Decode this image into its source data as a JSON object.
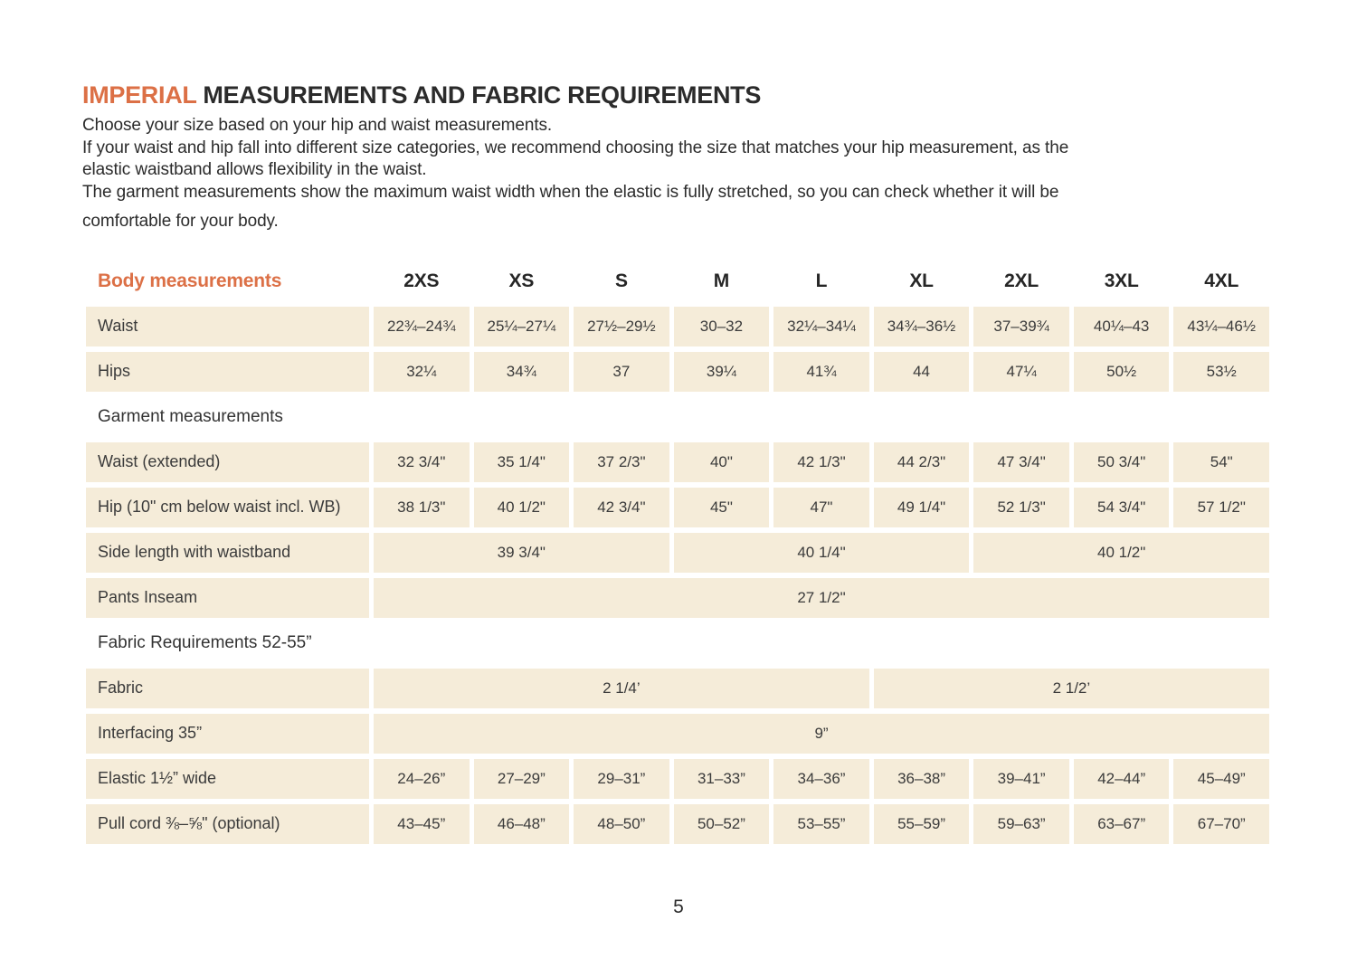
{
  "colors": {
    "accent": "#dc7046",
    "cell_bg": "#f5ecd9",
    "text": "#2d2d2d"
  },
  "header": {
    "title_accent": "IMPERIAL",
    "title_rest": "MEASUREMENTS AND FABRIC REQUIREMENTS"
  },
  "intro": {
    "lines": [
      "Choose your size based on your hip and waist measurements.",
      "If your waist and hip fall into different size categories, we recommend choosing the size that matches your hip measurement, as the",
      "elastic waistband allows flexibility in the waist.",
      "The garment measurements show the maximum waist width when the elastic is fully stretched, so you can check whether it will be",
      "comfortable for your body."
    ]
  },
  "table": {
    "header_label": "Body measurements",
    "columns": [
      "2XS",
      "XS",
      "S",
      "M",
      "L",
      "XL",
      "2XL",
      "3XL",
      "4XL"
    ],
    "rows": [
      {
        "type": "data",
        "label": "Waist",
        "cells": [
          {
            "text": "22¾–24¾",
            "span": 1
          },
          {
            "text": "25¼–27¼",
            "span": 1
          },
          {
            "text": "27½–29½",
            "span": 1
          },
          {
            "text": "30–32",
            "span": 1
          },
          {
            "text": "32¼–34¼",
            "span": 1
          },
          {
            "text": "34¾–36½",
            "span": 1
          },
          {
            "text": "37–39¾",
            "span": 1
          },
          {
            "text": "40¼–43",
            "span": 1
          },
          {
            "text": "43¼–46½",
            "span": 1
          }
        ]
      },
      {
        "type": "data",
        "label": "Hips",
        "cells": [
          {
            "text": "32¼",
            "span": 1
          },
          {
            "text": "34¾",
            "span": 1
          },
          {
            "text": "37",
            "span": 1
          },
          {
            "text": "39¼",
            "span": 1
          },
          {
            "text": "41¾",
            "span": 1
          },
          {
            "text": "44",
            "span": 1
          },
          {
            "text": "47¼",
            "span": 1
          },
          {
            "text": "50½",
            "span": 1
          },
          {
            "text": "53½",
            "span": 1
          }
        ]
      },
      {
        "type": "section",
        "label": "Garment measurements"
      },
      {
        "type": "data",
        "label": "Waist (extended)",
        "cells": [
          {
            "text": "32 3/4\"",
            "span": 1
          },
          {
            "text": "35 1/4\"",
            "span": 1
          },
          {
            "text": "37 2/3\"",
            "span": 1
          },
          {
            "text": "40\"",
            "span": 1
          },
          {
            "text": "42 1/3\"",
            "span": 1
          },
          {
            "text": "44 2/3\"",
            "span": 1
          },
          {
            "text": "47 3/4\"",
            "span": 1
          },
          {
            "text": "50 3/4\"",
            "span": 1
          },
          {
            "text": "54\"",
            "span": 1
          }
        ]
      },
      {
        "type": "data",
        "label": "Hip (10\" cm below waist incl. WB)",
        "cells": [
          {
            "text": "38 1/3\"",
            "span": 1
          },
          {
            "text": "40 1/2\"",
            "span": 1
          },
          {
            "text": "42 3/4\"",
            "span": 1
          },
          {
            "text": "45\"",
            "span": 1
          },
          {
            "text": "47\"",
            "span": 1
          },
          {
            "text": "49 1/4\"",
            "span": 1
          },
          {
            "text": "52 1/3\"",
            "span": 1
          },
          {
            "text": "54 3/4\"",
            "span": 1
          },
          {
            "text": "57 1/2\"",
            "span": 1
          }
        ]
      },
      {
        "type": "data",
        "label": "Side length with waistband",
        "cells": [
          {
            "text": "39 3/4\"",
            "span": 3
          },
          {
            "text": "40 1/4\"",
            "span": 3
          },
          {
            "text": "40 1/2\"",
            "span": 3
          }
        ]
      },
      {
        "type": "data",
        "label": "Pants Inseam",
        "cells": [
          {
            "text": "27 1/2\"",
            "span": 9
          }
        ]
      },
      {
        "type": "section",
        "label": "Fabric Requirements 52-55”"
      },
      {
        "type": "data",
        "label": "Fabric",
        "cells": [
          {
            "text": "2 1/4’",
            "span": 5
          },
          {
            "text": "2 1/2’",
            "span": 4
          }
        ]
      },
      {
        "type": "data",
        "label": "Interfacing 35”",
        "cells": [
          {
            "text": "9”",
            "span": 9
          }
        ]
      },
      {
        "type": "data",
        "label": "Elastic 1½” wide",
        "cells": [
          {
            "text": "24–26”",
            "span": 1
          },
          {
            "text": "27–29”",
            "span": 1
          },
          {
            "text": "29–31”",
            "span": 1
          },
          {
            "text": "31–33”",
            "span": 1
          },
          {
            "text": "34–36”",
            "span": 1
          },
          {
            "text": "36–38”",
            "span": 1
          },
          {
            "text": "39–41”",
            "span": 1
          },
          {
            "text": "42–44”",
            "span": 1
          },
          {
            "text": "45–49”",
            "span": 1
          }
        ]
      },
      {
        "type": "data",
        "label": "Pull cord ⅜–⅝\" (optional)",
        "cells": [
          {
            "text": "43–45”",
            "span": 1
          },
          {
            "text": "46–48”",
            "span": 1
          },
          {
            "text": "48–50”",
            "span": 1
          },
          {
            "text": "50–52”",
            "span": 1
          },
          {
            "text": "53–55”",
            "span": 1
          },
          {
            "text": "55–59”",
            "span": 1
          },
          {
            "text": "59–63”",
            "span": 1
          },
          {
            "text": "63–67”",
            "span": 1
          },
          {
            "text": "67–70”",
            "span": 1
          }
        ]
      }
    ]
  },
  "footer": {
    "page_number": "5"
  }
}
